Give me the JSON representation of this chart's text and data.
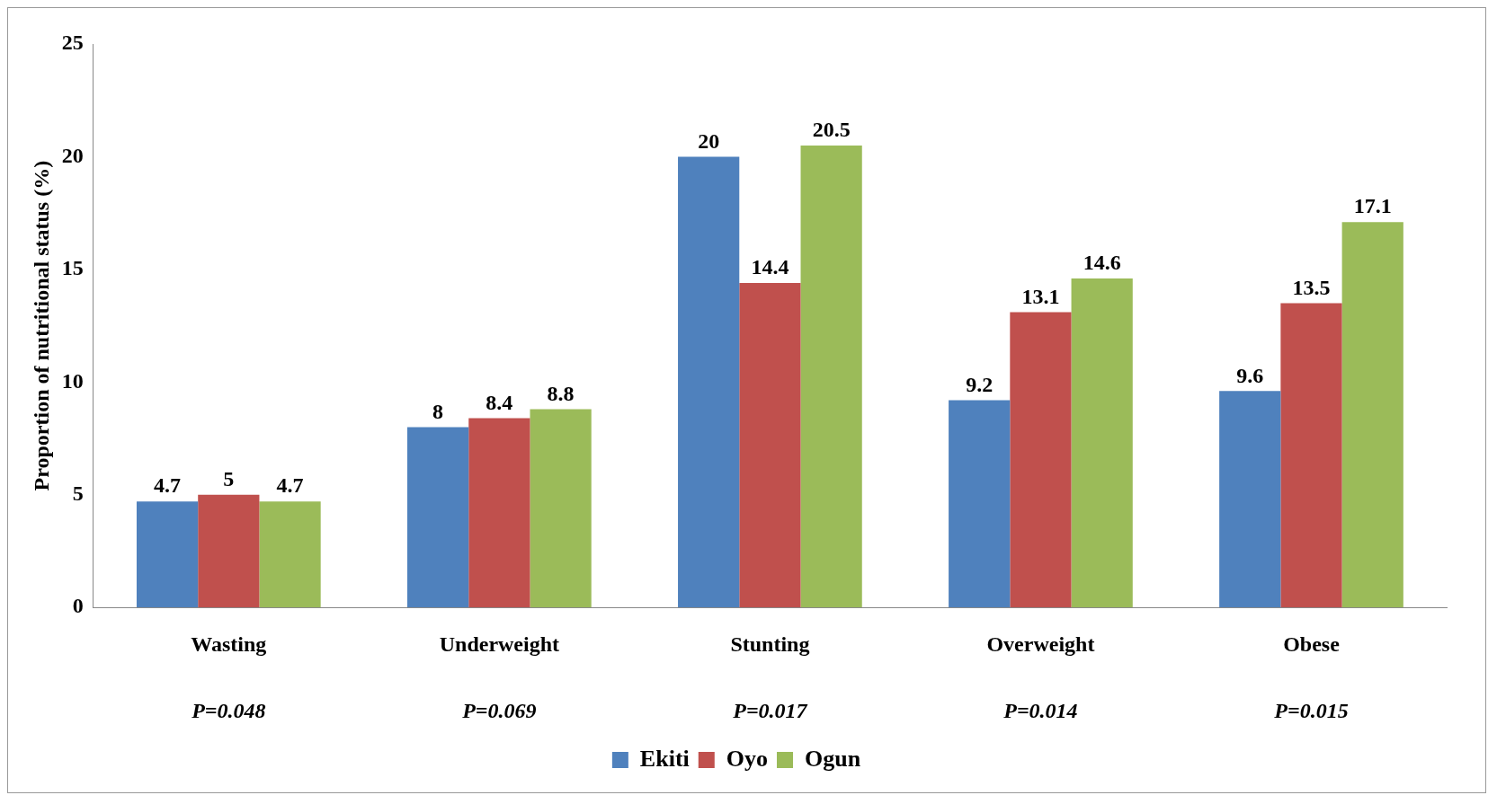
{
  "chart_data": {
    "type": "bar",
    "ylabel": "Proportion of nutritional status (%)",
    "categories": [
      "Wasting",
      "Underweight",
      "Stunting",
      "Overweight",
      "Obese"
    ],
    "series": [
      {
        "name": "Ekiti",
        "color": "#4f81bd",
        "values": [
          4.7,
          8,
          20,
          9.2,
          9.6
        ]
      },
      {
        "name": "Oyo",
        "color": "#c0504d",
        "values": [
          5,
          8.4,
          14.4,
          13.1,
          13.5
        ]
      },
      {
        "name": "Ogun",
        "color": "#9bbb59",
        "values": [
          4.7,
          8.8,
          20.5,
          14.6,
          17.1
        ]
      }
    ],
    "ylim": [
      0,
      25
    ],
    "yticks": [
      0,
      5,
      10,
      15,
      20,
      25
    ],
    "grid": false,
    "legend": "bottom",
    "data_labels": true,
    "annotations": [
      "P=0.048",
      "P=0.069",
      "P=0.017",
      "P=0.014",
      "P=0.015"
    ]
  }
}
